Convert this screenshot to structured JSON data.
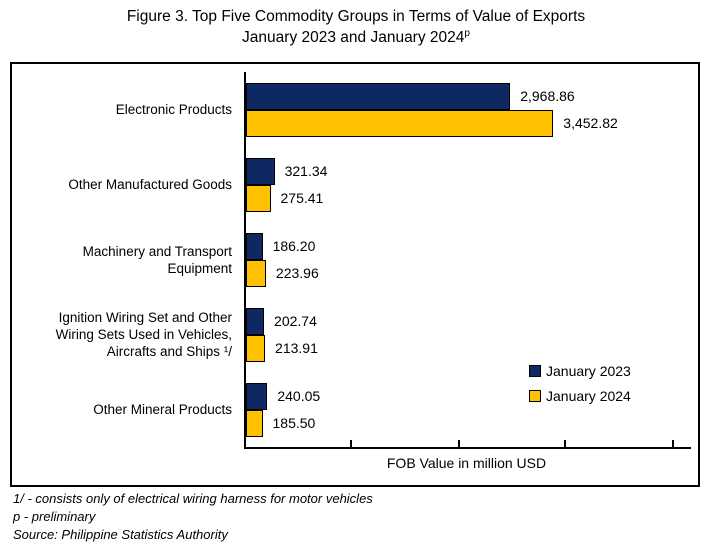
{
  "header": {
    "title_line1": "Figure 3. Top Five Commodity Groups in Terms of Value of Exports",
    "title_line2": "January 2023 and January 2024",
    "title_sup": "p"
  },
  "chart_data": {
    "type": "bar",
    "orientation": "horizontal",
    "title": "Figure 3. Top Five Commodity Groups in Terms of Value of Exports January 2023 and January 2024p",
    "categories": [
      "Electronic Products",
      "Other Manufactured Goods",
      "Machinery and Transport\nEquipment",
      "Ignition Wiring Set and Other\nWiring Sets Used in Vehicles,\nAircrafts and Ships ¹/",
      "Other Mineral Products"
    ],
    "series": [
      {
        "name": "January 2023",
        "color": "#0E2862",
        "values": [
          2968.86,
          321.34,
          186.2,
          202.74,
          240.05
        ],
        "labels": [
          "2,968.86",
          "321.34",
          "186.20",
          "202.74",
          "240.05"
        ]
      },
      {
        "name": "January 2024",
        "color": "#FFC000",
        "values": [
          3452.82,
          275.41,
          223.96,
          213.91,
          185.5
        ],
        "labels": [
          "3,452.82",
          "275.41",
          "223.96",
          "213.91",
          "185.50"
        ]
      }
    ],
    "xlabel": "FOB Value in million USD",
    "xlim": [
      0,
      5000
    ],
    "grid": false,
    "value_labels": true,
    "legend_position": "inside-right-middle",
    "tick_marks": "inside-unlabeled"
  },
  "footnotes": [
    "1/ - consists only of electrical wiring harness for motor vehicles",
    "p - preliminary",
    "Source: Philippine Statistics Authority"
  ]
}
